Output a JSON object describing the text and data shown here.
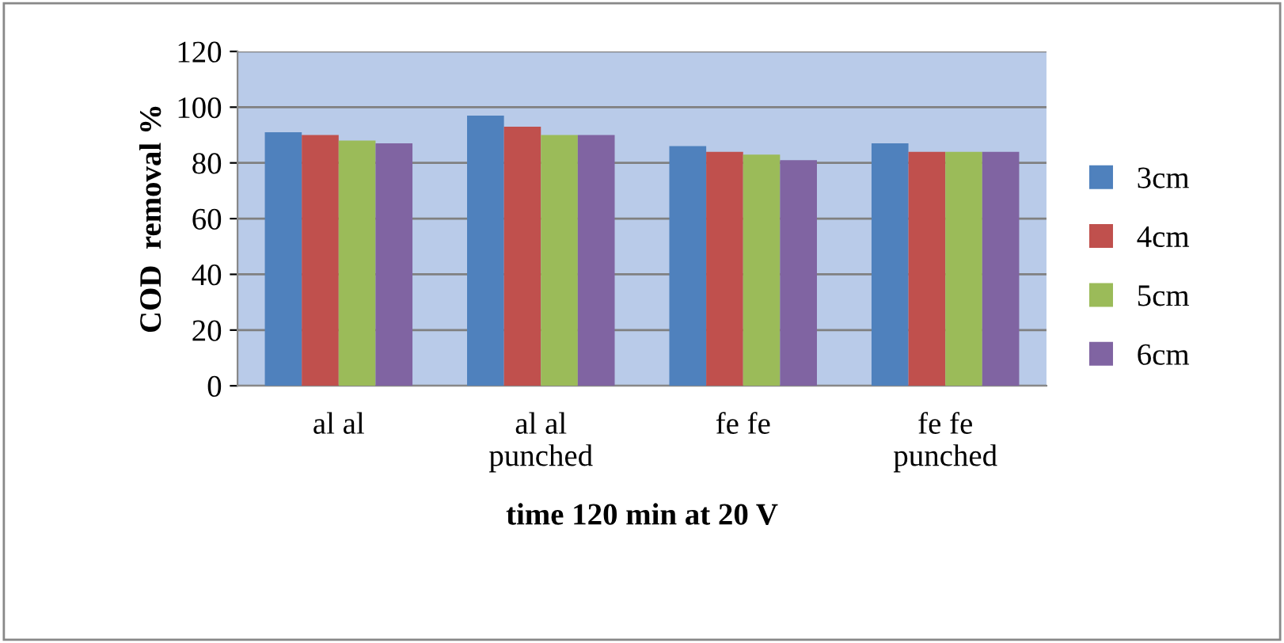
{
  "chart_data": {
    "type": "bar",
    "xlabel": "time 120 min at 20 V",
    "ylabel": "COD  removal %",
    "categories": [
      "al al",
      "al al\npunched",
      "fe fe",
      "fe fe\npunched"
    ],
    "series": [
      {
        "name": "3cm",
        "color": "#4f81bd",
        "values": [
          91,
          97,
          86,
          87
        ]
      },
      {
        "name": "4cm",
        "color": "#c0504d",
        "values": [
          90,
          93,
          84,
          84
        ]
      },
      {
        "name": "5cm",
        "color": "#9bbb59",
        "values": [
          88,
          90,
          83,
          84
        ]
      },
      {
        "name": "6cm",
        "color": "#8064a2",
        "values": [
          87,
          90,
          81,
          84
        ]
      }
    ],
    "ylim": [
      0,
      120
    ],
    "yticks": [
      0,
      20,
      40,
      60,
      80,
      100,
      120
    ],
    "grid": "y",
    "legend": "right"
  }
}
